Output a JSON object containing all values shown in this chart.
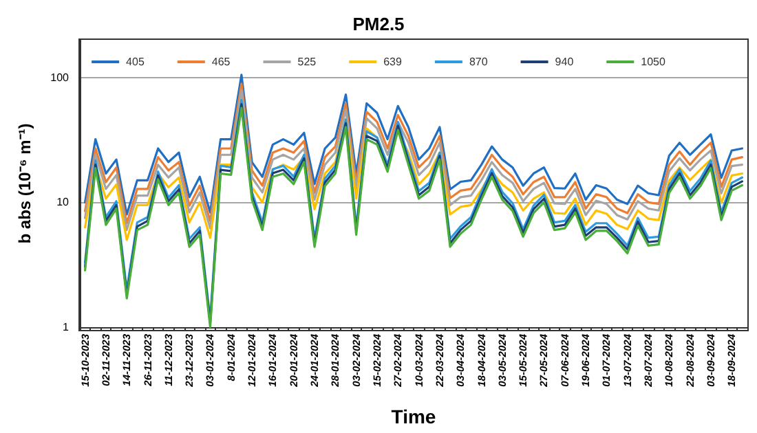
{
  "chart_data": {
    "type": "line",
    "title": "PM2.5",
    "xlabel": "Time",
    "ylabel": "b abs (10⁻⁶ m⁻¹)",
    "categories": [
      "15-10-2023",
      null,
      "02-11-2023",
      null,
      "14-11-2023",
      null,
      "26-11-2023",
      null,
      "11-12-2023",
      null,
      "23-12-2023",
      null,
      "03-01-2024",
      null,
      "8-01-2024",
      null,
      "12-01-2024",
      null,
      "16-01-2024",
      null,
      "20-01-2024",
      null,
      "24-01-2024",
      null,
      "28-01-2024",
      null,
      "03-02-2024",
      null,
      "15-02-2024",
      null,
      "27-02-2024",
      null,
      "10-03-2024",
      null,
      "22-03-2024",
      null,
      "03-04-2024",
      null,
      "18-04-2024",
      null,
      "03-05-2024",
      null,
      "15-05-2024",
      null,
      "27-05-2024",
      null,
      "07-06-2024",
      null,
      "19-06-2024",
      null,
      "01-07-2024",
      null,
      "13-07-2024",
      null,
      "28-07-2024",
      null,
      "10-08-2024",
      null,
      "22-08-2024",
      null,
      "03-09-2024",
      null,
      "18-09-2024",
      null
    ],
    "series": [
      {
        "name": "405",
        "color": "#1f6fc5",
        "values": [
          10,
          32,
          17,
          22,
          8,
          15,
          15,
          27,
          21,
          25,
          11,
          16,
          8.3,
          32,
          32,
          105,
          21,
          16,
          29,
          32,
          29,
          36,
          14,
          27,
          33,
          73,
          17,
          62,
          52,
          32,
          59,
          40,
          22,
          27,
          40,
          12.7,
          14.6,
          15,
          20,
          28,
          22,
          19,
          13.6,
          17,
          19,
          13,
          12.9,
          17,
          10.5,
          13.7,
          12.9,
          10.5,
          9.7,
          13.6,
          11.8,
          11.4,
          23.6,
          30,
          24,
          29,
          35,
          15.7,
          26,
          27
        ]
      },
      {
        "name": "465",
        "color": "#ed7d31",
        "values": [
          8.5,
          27,
          14.5,
          19,
          6.8,
          12.8,
          12.8,
          23,
          18,
          21,
          9.4,
          13.6,
          7.1,
          27,
          27,
          89,
          18,
          13.6,
          25,
          27,
          25,
          31,
          11.9,
          23,
          28,
          62,
          14.5,
          53,
          44,
          27,
          50,
          34,
          19,
          23,
          34,
          10.8,
          12.4,
          12.8,
          17,
          24,
          19,
          16,
          11.6,
          14.5,
          16,
          11,
          11,
          14.5,
          8.9,
          11.6,
          11,
          8.9,
          8.2,
          11.6,
          10,
          9.7,
          20,
          25.5,
          20,
          25,
          30,
          13.3,
          22,
          23
        ]
      },
      {
        "name": "525",
        "color": "#a5a5a5",
        "values": [
          7.5,
          24,
          12.8,
          16.5,
          6,
          11.3,
          11.3,
          20,
          15.8,
          19,
          8.3,
          12,
          6.2,
          24,
          24,
          79,
          15.8,
          12,
          22,
          24,
          22,
          27,
          10.5,
          20,
          25,
          55,
          12.8,
          47,
          39,
          24,
          44,
          30,
          16.5,
          20,
          30,
          9.5,
          11,
          11.3,
          15,
          21,
          16.5,
          14.3,
          10.2,
          12.8,
          14.3,
          9.8,
          9.7,
          12.8,
          7.9,
          10.3,
          9.7,
          7.9,
          7.3,
          10.2,
          8.9,
          8.6,
          17.7,
          22.5,
          18,
          22,
          26,
          11.8,
          19.5,
          20
        ]
      },
      {
        "name": "639",
        "color": "#ffc000",
        "values": [
          6.3,
          20,
          10.7,
          13.9,
          5,
          9.5,
          9.5,
          17,
          13.2,
          15.8,
          6.9,
          10,
          5.2,
          20,
          20,
          66,
          13.2,
          10,
          18.3,
          20,
          18.3,
          23,
          8.8,
          17,
          21,
          46,
          10.7,
          39,
          33,
          20,
          37,
          25,
          13.9,
          17,
          25,
          8,
          9.2,
          9.5,
          12.6,
          17.6,
          13.9,
          12,
          8.6,
          10.7,
          12,
          8.2,
          8.1,
          10.7,
          6.6,
          8.6,
          8.1,
          6.6,
          6.1,
          8.6,
          7.4,
          7.2,
          14.9,
          19,
          15.1,
          18.3,
          22,
          9.9,
          16.4,
          17
        ]
      },
      {
        "name": "870",
        "color": "#2e9be0",
        "values": [
          3.3,
          21.6,
          7.6,
          10.2,
          2,
          6.9,
          7.6,
          17.6,
          10.9,
          13.7,
          5.1,
          6.3,
          1.15,
          19.6,
          19.1,
          66,
          12.1,
          6.9,
          18.4,
          19.6,
          16.1,
          24,
          5.1,
          15.5,
          19.6,
          46,
          6.3,
          37,
          33,
          20,
          44,
          23,
          12.3,
          14.3,
          25,
          5.1,
          6.4,
          7.6,
          12.1,
          18.4,
          12.1,
          9.8,
          6.1,
          9.4,
          11.5,
          6.9,
          7.1,
          9.5,
          5.8,
          6.8,
          6.8,
          5.6,
          4.5,
          7.5,
          5.2,
          5.3,
          13.7,
          18.4,
          12.3,
          15.5,
          21.6,
          8.3,
          14.3,
          15.8
        ]
      },
      {
        "name": "940",
        "color": "#1f3e74",
        "values": [
          3.05,
          20,
          7.1,
          9.5,
          1.8,
          6.4,
          7.1,
          16.4,
          10.2,
          12.7,
          4.7,
          5.9,
          1.07,
          18.2,
          17.8,
          61,
          11.2,
          6.4,
          17.1,
          18.2,
          15,
          22.5,
          4.7,
          14.4,
          18.2,
          43,
          5.9,
          34,
          31,
          18.8,
          41,
          21.4,
          11.4,
          13.3,
          23.5,
          4.7,
          6,
          7.1,
          11.2,
          17.1,
          11.2,
          9.1,
          5.7,
          8.8,
          10.7,
          6.4,
          6.6,
          8.9,
          5.4,
          6.3,
          6.3,
          5.2,
          4.2,
          7,
          4.8,
          4.9,
          12.7,
          17.1,
          11.4,
          14.4,
          20,
          7.7,
          13.3,
          14.7
        ]
      },
      {
        "name": "1050",
        "color": "#4aae3a",
        "values": [
          2.85,
          18.8,
          6.6,
          8.9,
          1.7,
          6,
          6.6,
          15.3,
          9.5,
          11.9,
          4.4,
          5.5,
          1.0,
          17,
          16.6,
          57,
          10.5,
          6,
          16,
          17,
          14,
          21,
          4.4,
          13.5,
          17,
          40,
          5.5,
          32,
          29,
          17.6,
          38,
          20,
          10.7,
          12.4,
          22,
          4.4,
          5.6,
          6.6,
          10.5,
          16,
          10.5,
          8.5,
          5.3,
          8.2,
          10,
          6,
          6.2,
          8.3,
          5,
          5.9,
          5.9,
          4.9,
          3.9,
          6.5,
          4.5,
          4.6,
          11.9,
          16,
          10.7,
          13.5,
          18.8,
          7.2,
          12.4,
          13.7
        ]
      }
    ],
    "ylim": [
      1,
      200
    ],
    "yticks": [
      1,
      10,
      100
    ],
    "log": true,
    "grid": "y",
    "legend": "top",
    "marker": "none",
    "line_style": "solid"
  }
}
